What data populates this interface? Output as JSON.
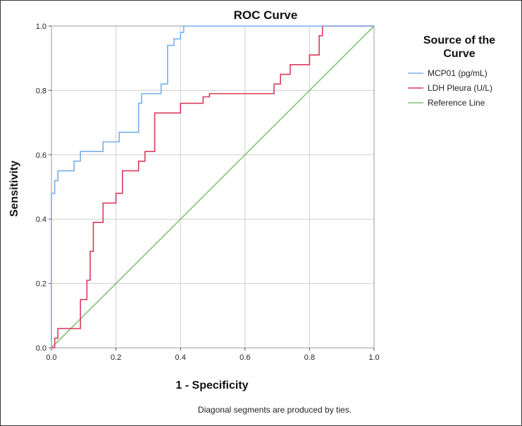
{
  "chart_data": {
    "type": "line",
    "title": "ROC Curve",
    "xlabel": "1 - Specificity",
    "ylabel": "Sensitivity",
    "xlim": [
      0,
      1
    ],
    "ylim": [
      0,
      1
    ],
    "grid": true,
    "xticks": [
      "0.0",
      "0.2",
      "0.4",
      "0.6",
      "0.8",
      "1.0"
    ],
    "yticks": [
      "0.0",
      "0.2",
      "0.4",
      "0.6",
      "0.8",
      "1.0"
    ],
    "legend": {
      "title": "Source of the Curve",
      "title_lines": [
        "Source of the",
        "Curve"
      ],
      "placement": "right"
    },
    "footnote": "Diagonal segments are produced by ties.",
    "series": [
      {
        "name": "MCP01 (pg/mL)",
        "color": "#7aaee6",
        "x": [
          0,
          0,
          0.01,
          0.01,
          0.02,
          0.02,
          0.07,
          0.07,
          0.09,
          0.09,
          0.16,
          0.16,
          0.21,
          0.21,
          0.27,
          0.27,
          0.28,
          0.28,
          0.29,
          0.29,
          0.34,
          0.34,
          0.36,
          0.36,
          0.38,
          0.38,
          0.4,
          0.4,
          0.41,
          0.41,
          1.0
        ],
        "y": [
          0,
          0.48,
          0.48,
          0.52,
          0.52,
          0.55,
          0.55,
          0.58,
          0.58,
          0.61,
          0.61,
          0.64,
          0.64,
          0.67,
          0.67,
          0.76,
          0.76,
          0.79,
          0.79,
          0.79,
          0.79,
          0.82,
          0.82,
          0.94,
          0.94,
          0.96,
          0.96,
          0.98,
          0.98,
          1.0,
          1.0
        ]
      },
      {
        "name": "LDH Pleura (U/L)",
        "color": "#d93b5c",
        "x": [
          0,
          0.01,
          0.01,
          0.02,
          0.02,
          0.09,
          0.09,
          0.11,
          0.11,
          0.12,
          0.12,
          0.13,
          0.13,
          0.16,
          0.16,
          0.2,
          0.2,
          0.22,
          0.22,
          0.27,
          0.27,
          0.29,
          0.29,
          0.32,
          0.32,
          0.33,
          0.33,
          0.4,
          0.4,
          0.47,
          0.47,
          0.49,
          0.49,
          0.69,
          0.69,
          0.71,
          0.71,
          0.74,
          0.74,
          0.76,
          0.76,
          0.8,
          0.8,
          0.83,
          0.83,
          0.84,
          0.84,
          1.0
        ],
        "y": [
          0,
          0,
          0.03,
          0.03,
          0.06,
          0.06,
          0.15,
          0.15,
          0.21,
          0.21,
          0.3,
          0.3,
          0.39,
          0.39,
          0.45,
          0.45,
          0.48,
          0.48,
          0.55,
          0.55,
          0.58,
          0.58,
          0.61,
          0.61,
          0.73,
          0.73,
          0.73,
          0.73,
          0.76,
          0.76,
          0.78,
          0.78,
          0.79,
          0.79,
          0.82,
          0.82,
          0.85,
          0.85,
          0.88,
          0.88,
          0.88,
          0.88,
          0.91,
          0.91,
          0.97,
          0.97,
          1.0,
          1.0
        ]
      },
      {
        "name": "Reference Line",
        "color": "#84c27a",
        "x": [
          0,
          1
        ],
        "y": [
          0,
          1
        ]
      }
    ]
  }
}
